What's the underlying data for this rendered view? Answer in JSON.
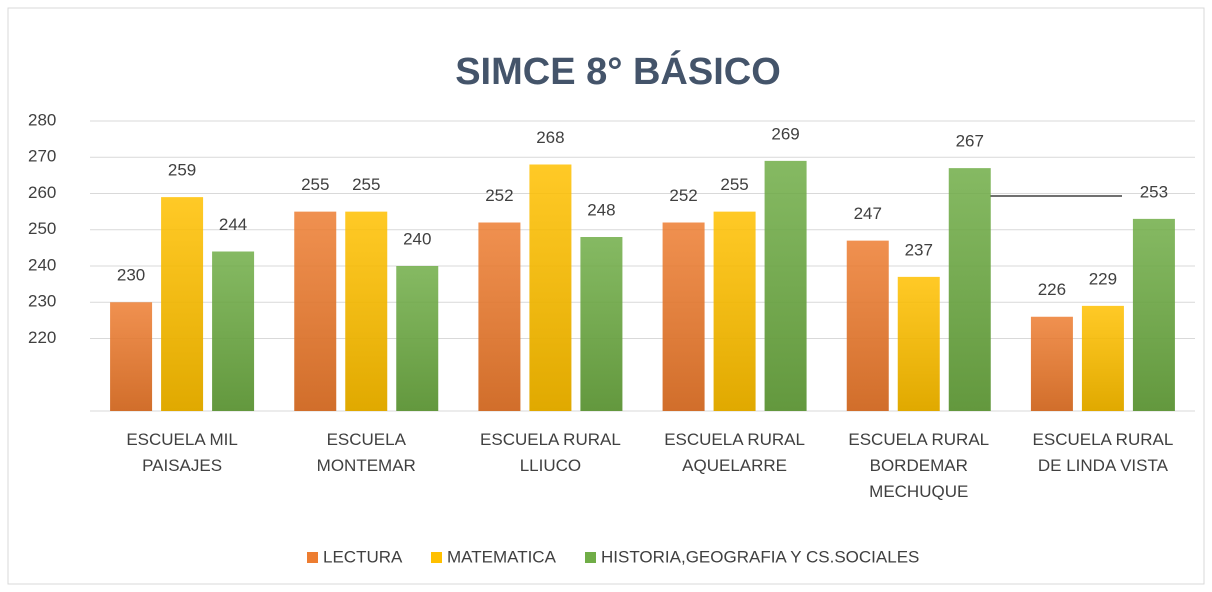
{
  "chart_data": {
    "type": "bar",
    "title": "SIMCE 8° BÁSICO",
    "categories": [
      "ESCUELA MIL PAISAJES",
      "ESCUELA MONTEMAR",
      "ESCUELA RURAL LLIUCO",
      "ESCUELA RURAL AQUELARRE",
      "ESCUELA RURAL BORDEMAR MECHUQUE",
      "ESCUELA RURAL DE LINDA VISTA"
    ],
    "series": [
      {
        "name": "LECTURA",
        "color": "#ed7d31",
        "values": [
          230,
          255,
          252,
          252,
          247,
          226
        ]
      },
      {
        "name": "MATEMATICA",
        "color": "#ffc000",
        "values": [
          259,
          255,
          268,
          255,
          237,
          229
        ]
      },
      {
        "name": "HISTORIA,GEOGRAFIA Y CS.SOCIALES",
        "color": "#70ad47",
        "values": [
          244,
          240,
          248,
          269,
          267,
          253
        ]
      }
    ],
    "ylim": [
      200,
      280
    ],
    "yticks": [
      220,
      230,
      240,
      250,
      260,
      270,
      280
    ],
    "grid": true,
    "legend": "bottom"
  }
}
